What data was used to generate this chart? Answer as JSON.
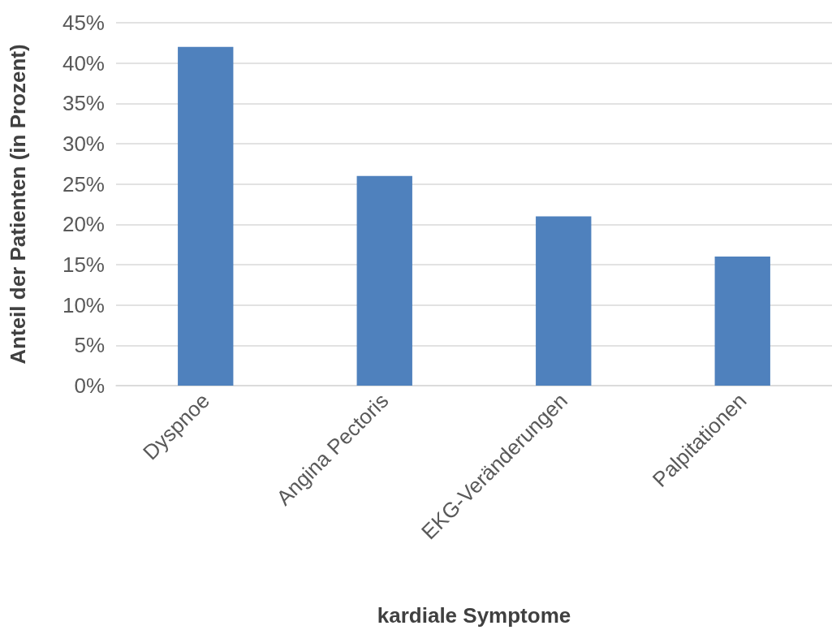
{
  "chart_data": {
    "type": "bar",
    "xlabel": "kardiale Symptome",
    "ylabel": "Anteil der Patienten (in Prozent)",
    "categories": [
      "Dyspnoe",
      "Angina Pectoris",
      "EKG-Veränderungen",
      "Palpitationen"
    ],
    "values": [
      42,
      26,
      21,
      16
    ],
    "color": "#4f81bd",
    "ylim": [
      0,
      45
    ],
    "yticks": [
      {
        "value": 0,
        "label": "0%"
      },
      {
        "value": 5,
        "label": "5%"
      },
      {
        "value": 10,
        "label": "10%"
      },
      {
        "value": 15,
        "label": "15%"
      },
      {
        "value": 20,
        "label": "20%"
      },
      {
        "value": 25,
        "label": "25%"
      },
      {
        "value": 30,
        "label": "30%"
      },
      {
        "value": 35,
        "label": "35%"
      },
      {
        "value": 40,
        "label": "40%"
      },
      {
        "value": 45,
        "label": "45%"
      }
    ],
    "grid": true
  }
}
